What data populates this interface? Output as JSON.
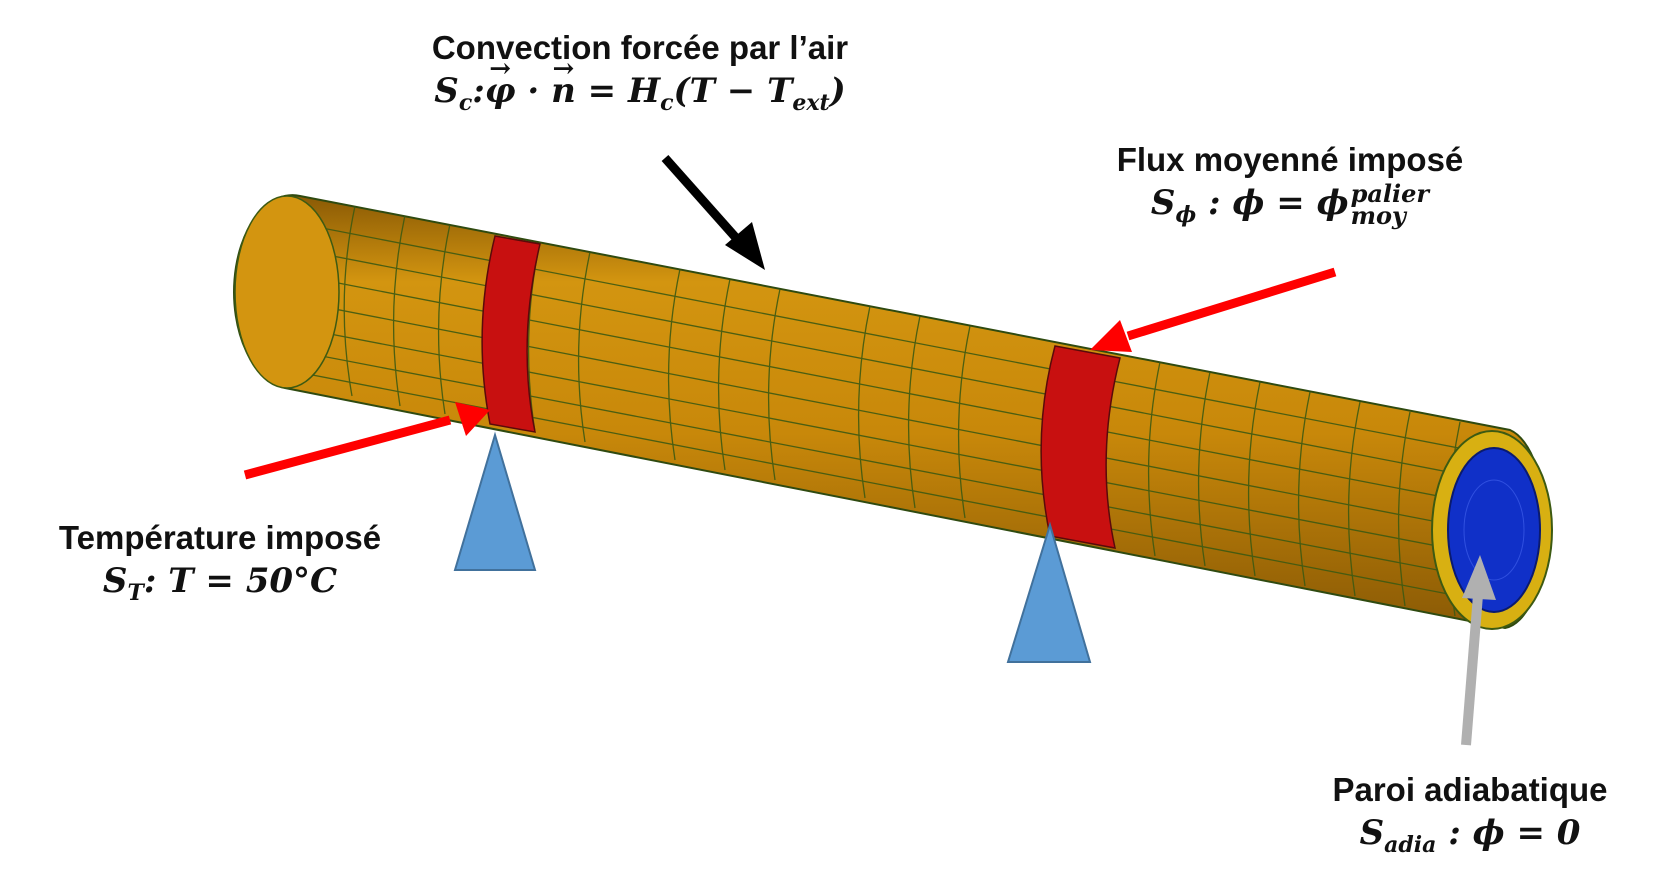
{
  "labels": {
    "convection": {
      "title": "Convection forcée par l’air",
      "eq_prefix": "S",
      "eq_prefix_sub": "c",
      "eq_phi": "φ",
      "eq_dot": "·",
      "eq_n": "n",
      "eq_rhs": "= H",
      "eq_rhs_sub": "c",
      "eq_open": "(T − T",
      "eq_ext_sub": "ext",
      "eq_close": ")"
    },
    "flux": {
      "title": "Flux moyenné imposé",
      "eq_left": "S",
      "eq_left_sub": "ϕ",
      "eq_mid": " : ϕ = ϕ",
      "eq_sup": "palier",
      "eq_sub": "moy"
    },
    "temperature": {
      "title": "Température imposé",
      "eq_left": "S",
      "eq_left_sub": "T",
      "eq_rest": ": T = 50°C"
    },
    "adiabatic": {
      "title": "Paroi adiabatique",
      "eq_left": "S",
      "eq_left_sub": "adia",
      "eq_rest": " : ϕ = 0"
    }
  },
  "colors": {
    "tube": "#c8880a",
    "tube_mesh": "#4a5a10",
    "band": "#c81010",
    "inner": "#1030c8",
    "support": "#5b9bd5",
    "arrow_red": "#ff0000",
    "arrow_black": "#000000",
    "arrow_grey": "#b0b0b0"
  }
}
